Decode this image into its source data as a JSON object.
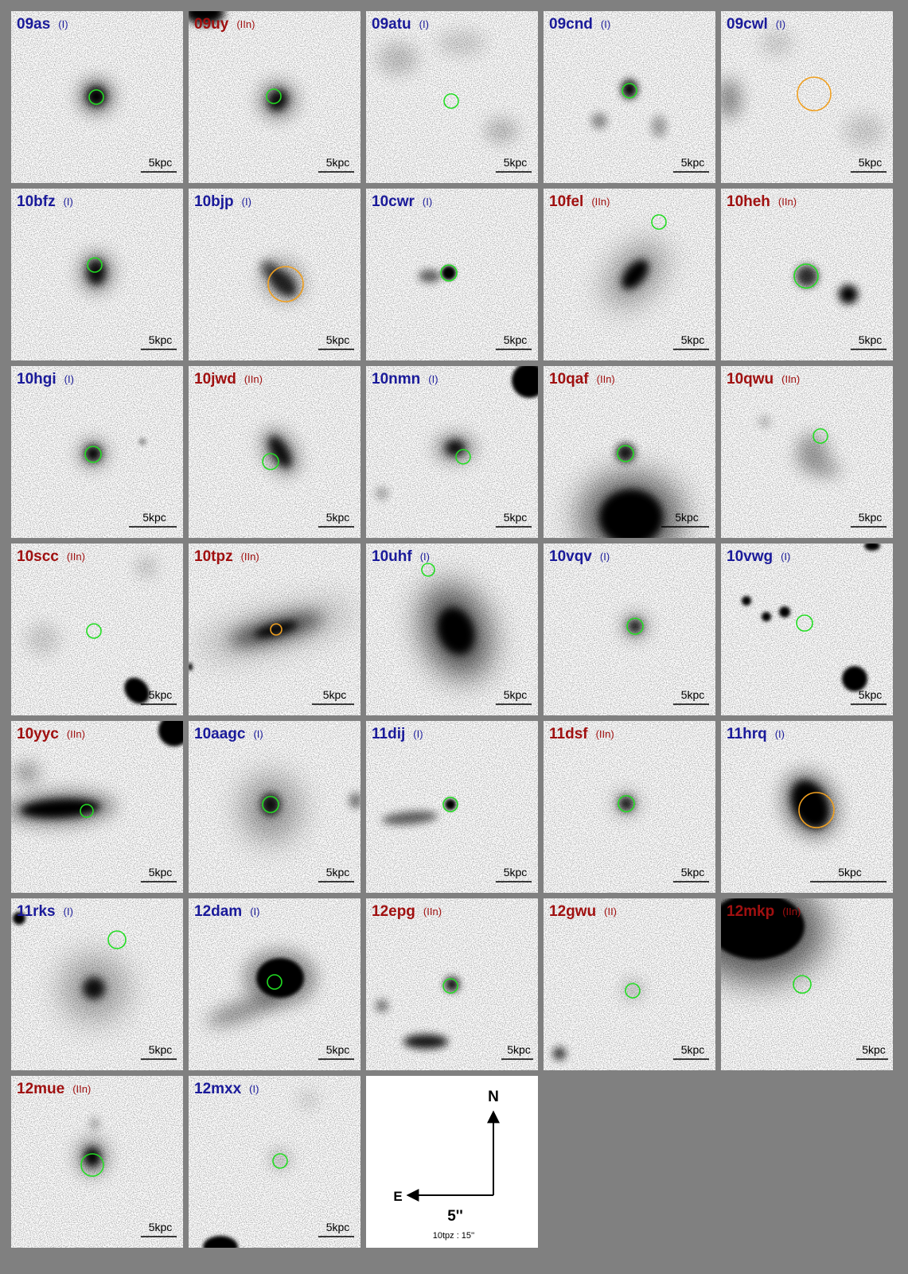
{
  "panels": [
    {
      "name": "09as",
      "class": "(I)",
      "scale": "5kpc"
    },
    {
      "name": "09uy",
      "class": "(IIn)",
      "scale": "5kpc"
    },
    {
      "name": "09atu",
      "class": "(I)",
      "scale": "5kpc"
    },
    {
      "name": "09cnd",
      "class": "(I)",
      "scale": "5kpc"
    },
    {
      "name": "09cwl",
      "class": "(I)",
      "scale": "5kpc"
    },
    {
      "name": "10bfz",
      "class": "(I)",
      "scale": "5kpc"
    },
    {
      "name": "10bjp",
      "class": "(I)",
      "scale": "5kpc"
    },
    {
      "name": "10cwr",
      "class": "(I)",
      "scale": "5kpc"
    },
    {
      "name": "10fel",
      "class": "(IIn)",
      "scale": "5kpc"
    },
    {
      "name": "10heh",
      "class": "(IIn)",
      "scale": "5kpc"
    },
    {
      "name": "10hgi",
      "class": "(I)",
      "scale": "5kpc"
    },
    {
      "name": "10jwd",
      "class": "(IIn)",
      "scale": "5kpc"
    },
    {
      "name": "10nmn",
      "class": "(I)",
      "scale": "5kpc"
    },
    {
      "name": "10qaf",
      "class": "(IIn)",
      "scale": "5kpc"
    },
    {
      "name": "10qwu",
      "class": "(IIn)",
      "scale": "5kpc"
    },
    {
      "name": "10scc",
      "class": "(IIn)",
      "scale": "5kpc"
    },
    {
      "name": "10tpz",
      "class": "(IIn)",
      "scale": "5kpc"
    },
    {
      "name": "10uhf",
      "class": "(I)",
      "scale": "5kpc"
    },
    {
      "name": "10vqv",
      "class": "(I)",
      "scale": "5kpc"
    },
    {
      "name": "10vwg",
      "class": "(I)",
      "scale": "5kpc"
    },
    {
      "name": "10yyc",
      "class": "(IIn)",
      "scale": "5kpc"
    },
    {
      "name": "10aagc",
      "class": "(I)",
      "scale": "5kpc"
    },
    {
      "name": "11dij",
      "class": "(I)",
      "scale": "5kpc"
    },
    {
      "name": "11dsf",
      "class": "(IIn)",
      "scale": "5kpc"
    },
    {
      "name": "11hrq",
      "class": "(I)",
      "scale": "5kpc"
    },
    {
      "name": "11rks",
      "class": "(I)",
      "scale": "5kpc"
    },
    {
      "name": "12dam",
      "class": "(I)",
      "scale": "5kpc"
    },
    {
      "name": "12epg",
      "class": "(IIn)",
      "scale": "5kpc"
    },
    {
      "name": "12gwu",
      "class": "(II)",
      "scale": "5kpc"
    },
    {
      "name": "12mkp",
      "class": "(IIn)",
      "scale": "5kpc"
    },
    {
      "name": "12mue",
      "class": "(IIn)",
      "scale": "5kpc"
    },
    {
      "name": "12mxx",
      "class": "(I)",
      "scale": "5kpc"
    }
  ],
  "compass": {
    "north": "N",
    "east": "E",
    "scale": "5''",
    "note": "10tpz : 15''"
  }
}
